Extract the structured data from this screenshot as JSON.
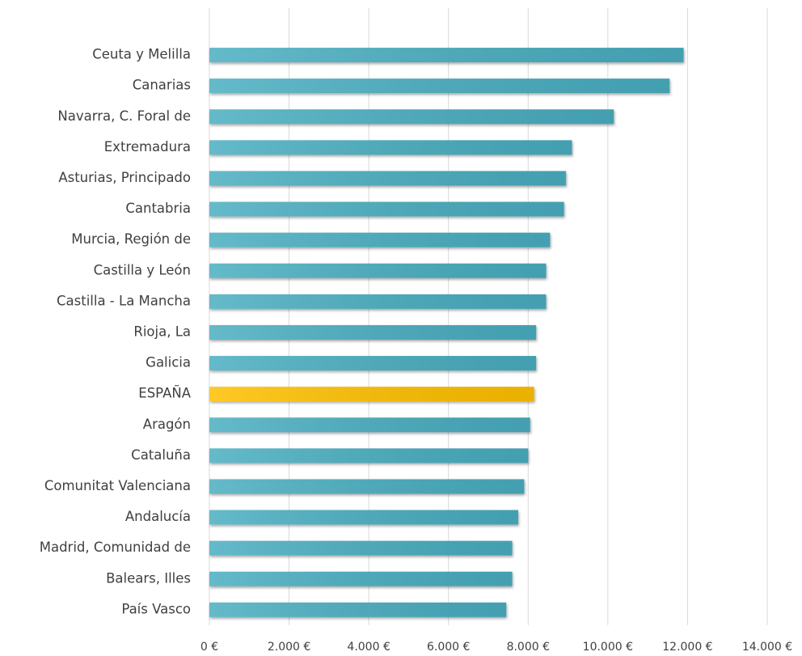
{
  "chart_data": {
    "type": "bar",
    "orientation": "horizontal",
    "categories": [
      "Ceuta y Melilla",
      "Canarias",
      "Navarra, C. Foral de",
      "Extremadura",
      "Asturias, Principado",
      "Cantabria",
      "Murcia, Región de",
      "Castilla y León",
      "Castilla - La Mancha",
      "Rioja, La",
      "Galicia",
      "ESPAÑA",
      "Aragón",
      "Cataluña",
      "Comunitat Valenciana",
      "Andalucía",
      "Madrid, Comunidad de",
      "Balears, Illes",
      "País Vasco"
    ],
    "values": [
      11900,
      11550,
      10150,
      9100,
      8950,
      8900,
      8550,
      8450,
      8450,
      8200,
      8200,
      8150,
      8050,
      8000,
      7900,
      7750,
      7600,
      7600,
      7450
    ],
    "colors": [
      "#4aaec0",
      "#4aaec0",
      "#4aaec0",
      "#4aaec0",
      "#4aaec0",
      "#4aaec0",
      "#4aaec0",
      "#4aaec0",
      "#4aaec0",
      "#4aaec0",
      "#4aaec0",
      "#ffc000",
      "#4aaec0",
      "#4aaec0",
      "#4aaec0",
      "#4aaec0",
      "#4aaec0",
      "#4aaec0",
      "#4aaec0"
    ],
    "xlim": [
      0,
      14000
    ],
    "xticks": [
      {
        "value": 0,
        "label": "0 €"
      },
      {
        "value": 2000,
        "label": "2.000 €"
      },
      {
        "value": 4000,
        "label": "4.000 €"
      },
      {
        "value": 6000,
        "label": "6.000 €"
      },
      {
        "value": 8000,
        "label": "8.000 €"
      },
      {
        "value": 10000,
        "label": "10.000 €"
      },
      {
        "value": 12000,
        "label": "12.000 €"
      },
      {
        "value": 14000,
        "label": "14.000 €"
      }
    ],
    "grid": true
  }
}
